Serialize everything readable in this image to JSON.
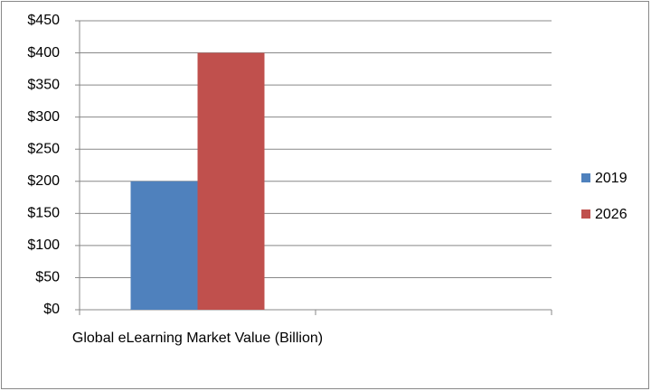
{
  "chart_data": {
    "type": "bar",
    "categories": [
      "Global eLearning Market Value (Billion)",
      null
    ],
    "series": [
      {
        "name": "2019",
        "color": "#4f81bd",
        "values": [
          200,
          null
        ]
      },
      {
        "name": "2026",
        "color": "#c0504d",
        "values": [
          400,
          null
        ]
      }
    ],
    "ylim": [
      0,
      450
    ],
    "yticks": [
      {
        "value": 0,
        "label": "$0"
      },
      {
        "value": 50,
        "label": "$50"
      },
      {
        "value": 100,
        "label": "$100"
      },
      {
        "value": 150,
        "label": "$150"
      },
      {
        "value": 200,
        "label": "$200"
      },
      {
        "value": 250,
        "label": "$250"
      },
      {
        "value": 300,
        "label": "$300"
      },
      {
        "value": 350,
        "label": "$350"
      },
      {
        "value": 400,
        "label": "$400"
      },
      {
        "value": 450,
        "label": "$450"
      }
    ],
    "grid": true,
    "legend": "right"
  }
}
